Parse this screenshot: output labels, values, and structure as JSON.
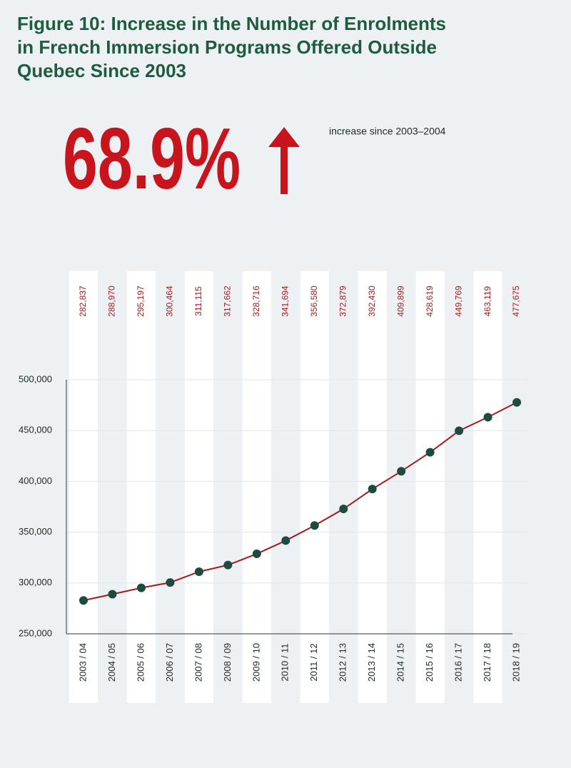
{
  "chart_data": {
    "type": "line",
    "title": [
      "Figure 10: Increase in the Number of Enrolments",
      "in French Immersion Programs Offered Outside",
      "Quebec Since 2003"
    ],
    "stat": "68.9%",
    "stat_text": "increase since 2003–2004",
    "categories": [
      "2003 / 04",
      "2004 / 05",
      "2005 / 06",
      "2006 / 07",
      "2007 / 08",
      "2008 / 09",
      "2009 / 10",
      "2010 / 11",
      "2011 / 12",
      "2012 / 13",
      "2013 / 14",
      "2014 / 15",
      "2015 / 16",
      "2016 / 17",
      "2017 / 18",
      "2018 / 19"
    ],
    "values": [
      282837,
      288970,
      295197,
      300464,
      311115,
      317662,
      328716,
      341694,
      356580,
      372879,
      392430,
      409899,
      428619,
      449769,
      463119,
      477675
    ],
    "value_labels": [
      "282,837",
      "288,970",
      "295,197",
      "300,464",
      "311,115",
      "317,662",
      "328,716",
      "341,694",
      "356,580",
      "372,879",
      "392,430",
      "409,899",
      "428,619",
      "449,769",
      "463,119",
      "477,675"
    ],
    "ylim": [
      250000,
      500000
    ],
    "yticks": [
      {
        "value": 250000,
        "label": "250,000"
      },
      {
        "value": 300000,
        "label": "300,000"
      },
      {
        "value": 350000,
        "label": "350,000"
      },
      {
        "value": 400000,
        "label": "400,000"
      },
      {
        "value": 450000,
        "label": "450,000"
      },
      {
        "value": 500000,
        "label": "500,000"
      }
    ],
    "color": "#a31a1a",
    "marker_color": "#1d4b40",
    "grid": true
  }
}
